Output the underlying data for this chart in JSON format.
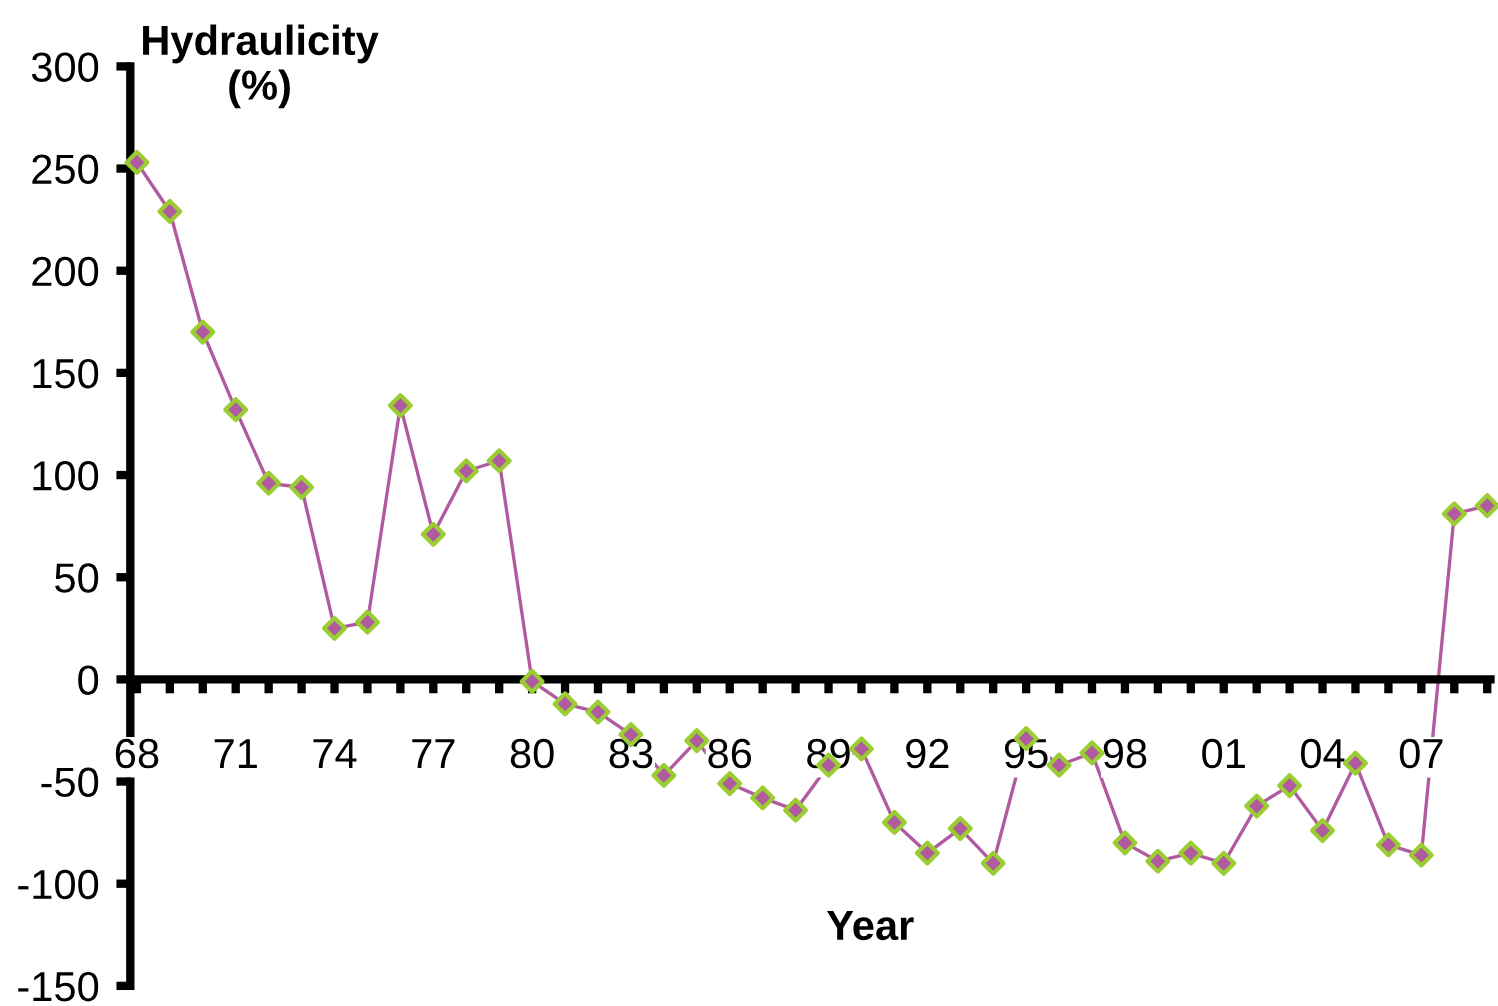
{
  "chart_data": {
    "type": "line",
    "ylabel": "Hydraulicity\n(%)",
    "xlabel": "Year",
    "x": [
      1968,
      1969,
      1970,
      1971,
      1972,
      1973,
      1974,
      1975,
      1976,
      1977,
      1978,
      1979,
      1980,
      1981,
      1982,
      1983,
      1984,
      1985,
      1986,
      1987,
      1988,
      1989,
      1990,
      1991,
      1992,
      1993,
      1994,
      1995,
      1996,
      1997,
      1998,
      1999,
      2000,
      2001,
      2002,
      2003,
      2004,
      2005,
      2006,
      2007,
      2008,
      2009
    ],
    "series": [
      {
        "color": "#b05aa0",
        "colors": [
          "#9acd32",
          "#9acd32",
          "#9acd32",
          "#9acd32",
          "#9acd32",
          "#9acd32",
          "#9acd32",
          "#9acd32",
          "#9acd32",
          "#9acd32",
          "#9acd32",
          "#9acd32",
          "#9acd32",
          "#9acd32",
          "#9acd32",
          "#9acd32",
          "#9acd32",
          "#9acd32",
          "#9acd32",
          "#9acd32",
          "#9acd32",
          "#9acd32",
          "#9acd32",
          "#9acd32",
          "#9acd32",
          "#9acd32",
          "#9acd32",
          "#9acd32",
          "#9acd32",
          "#9acd32",
          "#9acd32",
          "#9acd32",
          "#9acd32",
          "#9acd32",
          "#9acd32",
          "#9acd32",
          "#9acd32",
          "#9acd32",
          "#9acd32",
          "#9acd32",
          "#9acd32",
          "#9acd32"
        ],
        "values": [
          253,
          229,
          170,
          132,
          96,
          94,
          25,
          28,
          134,
          71,
          102,
          107,
          -1,
          -12,
          -16,
          -27,
          -47,
          -30,
          -51,
          -58,
          -64,
          -42,
          -34,
          -70,
          -85,
          -73,
          -90,
          -29,
          -42,
          -36,
          -80,
          -89,
          -85,
          -90,
          -62,
          -52,
          -74,
          -41,
          -81,
          -86,
          81,
          85
        ]
      }
    ],
    "marker": "diamond",
    "line_style": "solid",
    "grid": false,
    "legend": false,
    "xlim": [
      1967.8,
      2009.1
    ],
    "ylim": [
      -150,
      300
    ],
    "yticks": [
      -150,
      -100,
      -50,
      0,
      50,
      100,
      150,
      200,
      250,
      300
    ],
    "xticks": [
      {
        "value": 1968,
        "label": "68"
      },
      {
        "value": 1969,
        "label": null
      },
      {
        "value": 1970,
        "label": null
      },
      {
        "value": 1971,
        "label": "71"
      },
      {
        "value": 1972,
        "label": null
      },
      {
        "value": 1973,
        "label": null
      },
      {
        "value": 1974,
        "label": "74"
      },
      {
        "value": 1975,
        "label": null
      },
      {
        "value": 1976,
        "label": null
      },
      {
        "value": 1977,
        "label": "77"
      },
      {
        "value": 1978,
        "label": null
      },
      {
        "value": 1979,
        "label": null
      },
      {
        "value": 1980,
        "label": "80"
      },
      {
        "value": 1981,
        "label": null
      },
      {
        "value": 1982,
        "label": null
      },
      {
        "value": 1983,
        "label": "83"
      },
      {
        "value": 1984,
        "label": null
      },
      {
        "value": 1985,
        "label": null
      },
      {
        "value": 1986,
        "label": "86"
      },
      {
        "value": 1987,
        "label": null
      },
      {
        "value": 1988,
        "label": null
      },
      {
        "value": 1989,
        "label": "89"
      },
      {
        "value": 1990,
        "label": null
      },
      {
        "value": 1991,
        "label": null
      },
      {
        "value": 1992,
        "label": "92"
      },
      {
        "value": 1993,
        "label": null
      },
      {
        "value": 1994,
        "label": null
      },
      {
        "value": 1995,
        "label": "95"
      },
      {
        "value": 1996,
        "label": null
      },
      {
        "value": 1997,
        "label": null
      },
      {
        "value": 1998,
        "label": "98"
      },
      {
        "value": 1999,
        "label": null
      },
      {
        "value": 2000,
        "label": null
      },
      {
        "value": 2001,
        "label": "01"
      },
      {
        "value": 2002,
        "label": null
      },
      {
        "value": 2003,
        "label": null
      },
      {
        "value": 2004,
        "label": "04"
      },
      {
        "value": 2005,
        "label": null
      },
      {
        "value": 2006,
        "label": null
      },
      {
        "value": 2007,
        "label": "07"
      },
      {
        "value": 2008,
        "label": null
      },
      {
        "value": 2009,
        "label": null
      }
    ]
  }
}
